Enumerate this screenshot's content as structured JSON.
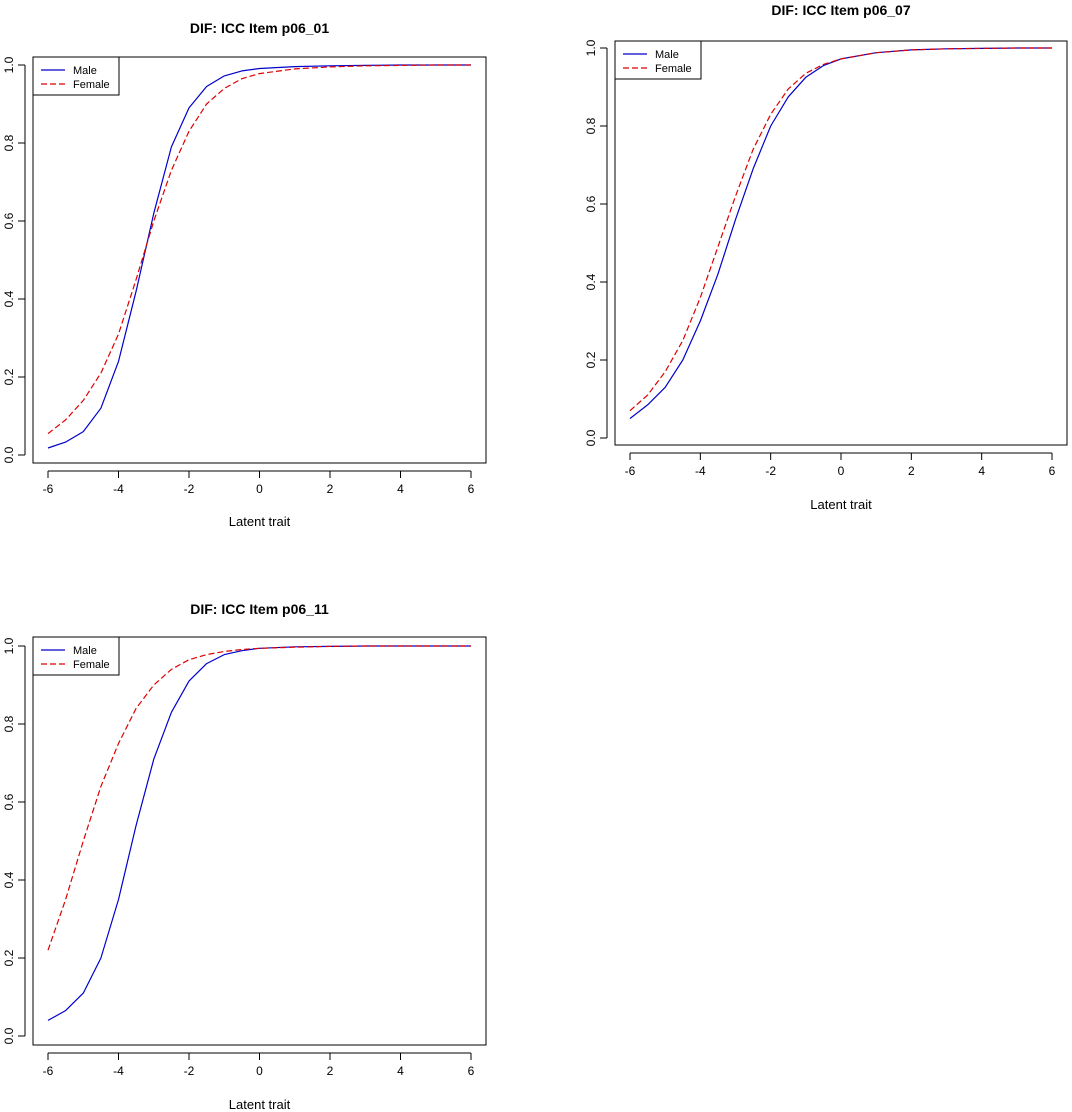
{
  "chart_data": [
    {
      "type": "line",
      "title": "DIF: ICC Item p06_01",
      "xlabel": "Latent trait",
      "ylabel": "",
      "xlim": [
        -6,
        6
      ],
      "ylim": [
        0,
        1
      ],
      "xticks": [
        "-6",
        "-4",
        "-2",
        "0",
        "2",
        "4",
        "6"
      ],
      "yticks": [
        "0.0",
        "0.2",
        "0.4",
        "0.6",
        "0.8",
        "1.0"
      ],
      "legend_position": "top-left",
      "series": [
        {
          "name": "Male",
          "color": "#0000cc",
          "dash": "solid",
          "x": [
            -6,
            -5.5,
            -5,
            -4.5,
            -4,
            -3.5,
            -3,
            -2.5,
            -2,
            -1.5,
            -1,
            -0.5,
            0,
            1,
            2,
            3,
            4,
            5,
            6
          ],
          "y": [
            0.018,
            0.033,
            0.06,
            0.12,
            0.24,
            0.42,
            0.62,
            0.79,
            0.89,
            0.945,
            0.972,
            0.985,
            0.991,
            0.996,
            0.998,
            0.999,
            1.0,
            1.0,
            1.0
          ]
        },
        {
          "name": "Female",
          "color": "#dd0000",
          "dash": "dashed",
          "x": [
            -6,
            -5.5,
            -5,
            -4.5,
            -4,
            -3.5,
            -3,
            -2.5,
            -2,
            -1.5,
            -1,
            -0.5,
            0,
            1,
            2,
            3,
            4,
            5,
            6
          ],
          "y": [
            0.055,
            0.09,
            0.14,
            0.21,
            0.31,
            0.45,
            0.6,
            0.73,
            0.83,
            0.9,
            0.94,
            0.965,
            0.978,
            0.99,
            0.995,
            0.998,
            0.999,
            1.0,
            1.0
          ]
        }
      ]
    },
    {
      "type": "line",
      "title": "DIF: ICC Item p06_07",
      "xlabel": "Latent trait",
      "ylabel": "",
      "xlim": [
        -6,
        6
      ],
      "ylim": [
        0,
        1
      ],
      "xticks": [
        "-6",
        "-4",
        "-2",
        "0",
        "2",
        "4",
        "6"
      ],
      "yticks": [
        "0.0",
        "0.2",
        "0.4",
        "0.6",
        "0.8",
        "1.0"
      ],
      "legend_position": "top-left",
      "series": [
        {
          "name": "Male",
          "color": "#0000cc",
          "dash": "solid",
          "x": [
            -6,
            -5.5,
            -5,
            -4.5,
            -4,
            -3.5,
            -3,
            -2.5,
            -2,
            -1.5,
            -1,
            -0.5,
            0,
            1,
            2,
            3,
            4,
            5,
            6
          ],
          "y": [
            0.05,
            0.085,
            0.13,
            0.2,
            0.3,
            0.42,
            0.56,
            0.69,
            0.8,
            0.875,
            0.925,
            0.955,
            0.972,
            0.988,
            0.995,
            0.998,
            0.999,
            1.0,
            1.0
          ]
        },
        {
          "name": "Female",
          "color": "#dd0000",
          "dash": "dashed",
          "x": [
            -6,
            -5.5,
            -5,
            -4.5,
            -4,
            -3.5,
            -3,
            -2.5,
            -2,
            -1.5,
            -1,
            -0.5,
            0,
            1,
            2,
            3,
            4,
            5,
            6
          ],
          "y": [
            0.07,
            0.11,
            0.17,
            0.25,
            0.36,
            0.49,
            0.62,
            0.74,
            0.83,
            0.895,
            0.935,
            0.958,
            0.972,
            0.988,
            0.995,
            0.998,
            0.999,
            1.0,
            1.0
          ]
        }
      ]
    },
    {
      "type": "line",
      "title": "DIF: ICC Item p06_11",
      "xlabel": "Latent trait",
      "ylabel": "",
      "xlim": [
        -6,
        6
      ],
      "ylim": [
        0,
        1
      ],
      "xticks": [
        "-6",
        "-4",
        "-2",
        "0",
        "2",
        "4",
        "6"
      ],
      "yticks": [
        "0.0",
        "0.2",
        "0.4",
        "0.6",
        "0.8",
        "1.0"
      ],
      "legend_position": "top-left",
      "series": [
        {
          "name": "Male",
          "color": "#0000cc",
          "dash": "solid",
          "x": [
            -6,
            -5.5,
            -5,
            -4.5,
            -4,
            -3.5,
            -3,
            -2.5,
            -2,
            -1.5,
            -1,
            -0.5,
            0,
            1,
            2,
            3,
            4,
            5,
            6
          ],
          "y": [
            0.04,
            0.065,
            0.11,
            0.2,
            0.35,
            0.54,
            0.71,
            0.83,
            0.91,
            0.955,
            0.978,
            0.988,
            0.994,
            0.998,
            0.999,
            1.0,
            1.0,
            1.0,
            1.0
          ]
        },
        {
          "name": "Female",
          "color": "#dd0000",
          "dash": "dashed",
          "x": [
            -6,
            -5.5,
            -5,
            -4.5,
            -4,
            -3.5,
            -3,
            -2.5,
            -2,
            -1.5,
            -1,
            -0.5,
            0,
            1,
            2,
            3,
            4,
            5,
            6
          ],
          "y": [
            0.22,
            0.35,
            0.5,
            0.64,
            0.75,
            0.84,
            0.9,
            0.94,
            0.965,
            0.978,
            0.986,
            0.991,
            0.994,
            0.997,
            0.999,
            1.0,
            1.0,
            1.0,
            1.0
          ]
        }
      ]
    }
  ]
}
